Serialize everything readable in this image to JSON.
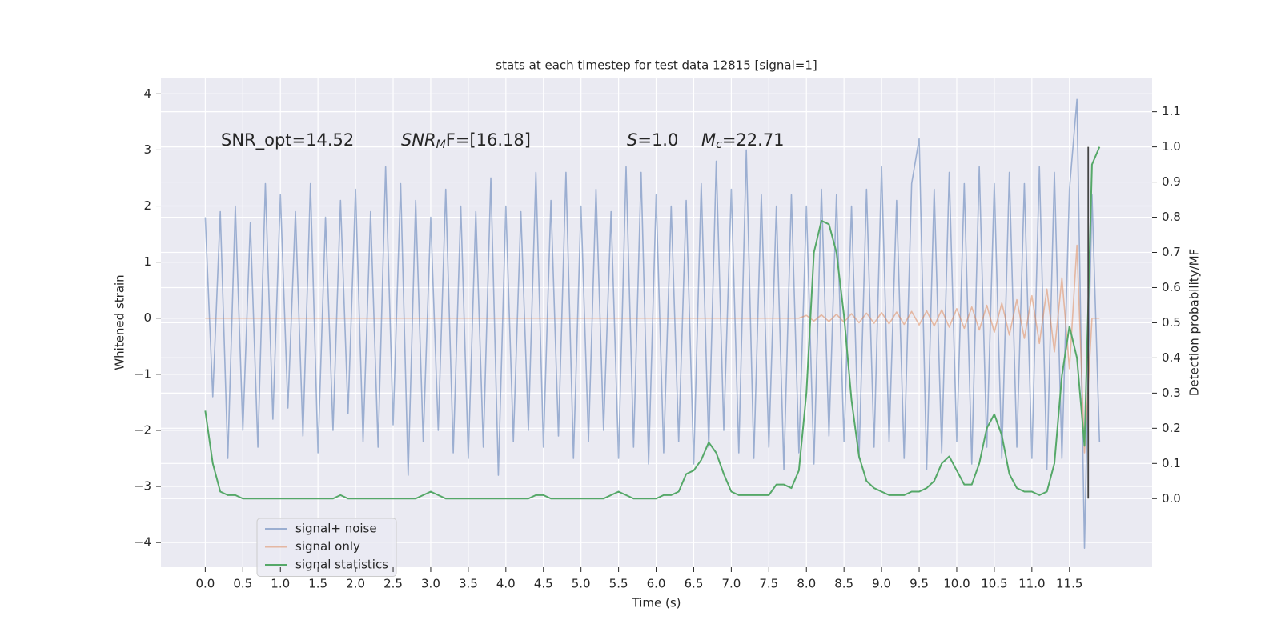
{
  "chart_data": {
    "type": "line",
    "title": "stats at each timestep for test data 12815 [signal=1]",
    "xlabel": "Time (s)",
    "ylabel": "Whitened strain",
    "y2label": "Detection probability/MF",
    "annotations": [
      [
        {
          "text": "SNR_opt=14.52"
        }
      ],
      [
        {
          "text": "SNR",
          "style": "italic"
        },
        {
          "text": "M",
          "style": "subscript"
        },
        {
          "text": "F=[16.18]"
        }
      ],
      [
        {
          "text": "S",
          "style": "italic"
        },
        {
          "text": "=1.0"
        }
      ],
      [
        {
          "text": "M",
          "style": "italic"
        },
        {
          "text": "c",
          "style": "subscript"
        },
        {
          "text": "=22.71"
        }
      ]
    ],
    "x": [
      0,
      0.1,
      0.2,
      0.3,
      0.4,
      0.5,
      0.6,
      0.7,
      0.8,
      0.9,
      1,
      1.1,
      1.2,
      1.3,
      1.4,
      1.5,
      1.6,
      1.7,
      1.8,
      1.9,
      2,
      2.1,
      2.2,
      2.3,
      2.4,
      2.5,
      2.6,
      2.7,
      2.8,
      2.9,
      3,
      3.1,
      3.2,
      3.3,
      3.4,
      3.5,
      3.6,
      3.7,
      3.8,
      3.9,
      4,
      4.1,
      4.2,
      4.3,
      4.4,
      4.5,
      4.6,
      4.7,
      4.8,
      4.9,
      5,
      5.1,
      5.2,
      5.3,
      5.4,
      5.5,
      5.6,
      5.7,
      5.8,
      5.9,
      6,
      6.1,
      6.2,
      6.3,
      6.4,
      6.5,
      6.6,
      6.7,
      6.8,
      6.9,
      7,
      7.1,
      7.2,
      7.3,
      7.4,
      7.5,
      7.6,
      7.7,
      7.8,
      7.9,
      8,
      8.1,
      8.2,
      8.3,
      8.4,
      8.5,
      8.6,
      8.7,
      8.8,
      8.9,
      9,
      9.1,
      9.2,
      9.3,
      9.4,
      9.5,
      9.6,
      9.7,
      9.8,
      9.9,
      10,
      10.1,
      10.2,
      10.3,
      10.4,
      10.5,
      10.6,
      10.7,
      10.8,
      10.9,
      11,
      11.1,
      11.2,
      11.3,
      11.4,
      11.5,
      11.6,
      11.7,
      11.8,
      11.9
    ],
    "series": [
      {
        "name": "signal+ noise",
        "color": "#4c72b0",
        "alpha": 0.5,
        "axis": "y",
        "values": [
          1.8,
          -1.4,
          1.9,
          -2.5,
          2.0,
          -2.0,
          1.7,
          -2.3,
          2.4,
          -1.8,
          2.2,
          -1.6,
          1.9,
          -2.1,
          2.4,
          -2.4,
          1.8,
          -2.0,
          2.1,
          -1.7,
          2.3,
          -2.2,
          1.9,
          -2.3,
          2.7,
          -1.9,
          2.4,
          -2.8,
          2.1,
          -2.2,
          1.8,
          -2.0,
          2.3,
          -2.4,
          2.0,
          -2.5,
          1.9,
          -2.3,
          2.5,
          -2.8,
          2.0,
          -2.2,
          1.9,
          -2.0,
          2.6,
          -2.3,
          2.1,
          -2.1,
          2.6,
          -2.5,
          2.0,
          -2.2,
          2.3,
          -2.0,
          1.9,
          -2.5,
          2.7,
          -2.3,
          2.6,
          -2.6,
          2.2,
          -2.4,
          2.0,
          -2.2,
          2.1,
          -2.6,
          2.4,
          -2.3,
          2.8,
          -2.0,
          2.3,
          -2.4,
          3.0,
          -2.5,
          2.2,
          -2.3,
          2.0,
          -2.7,
          2.2,
          -2.4,
          2.0,
          -2.6,
          2.3,
          -2.1,
          2.2,
          -2.2,
          2.0,
          -2.5,
          2.3,
          -2.3,
          2.7,
          -2.2,
          2.1,
          -2.5,
          2.4,
          3.2,
          -2.7,
          2.3,
          -2.4,
          2.6,
          -2.2,
          2.4,
          -2.6,
          2.7,
          -2.3,
          2.4,
          -2.5,
          2.6,
          -2.3,
          2.4,
          -2.5,
          2.7,
          -2.7,
          2.6,
          -2.5,
          2.3,
          3.9,
          -4.1,
          2.2,
          -2.2
        ]
      },
      {
        "name": "signal only",
        "color": "#dd8452",
        "alpha": 0.5,
        "axis": "y",
        "values": [
          0,
          0,
          0,
          0,
          0,
          0,
          0,
          0,
          0,
          0,
          0,
          0,
          0,
          0,
          0,
          0,
          0,
          0,
          0,
          0,
          0,
          0,
          0,
          0,
          0,
          0,
          0,
          0,
          0,
          0,
          0,
          0,
          0,
          0,
          0,
          0,
          0,
          0,
          0,
          0,
          0,
          0,
          0,
          0,
          0,
          0,
          0,
          0,
          0,
          0,
          0,
          0,
          0,
          0,
          0,
          0,
          0,
          0,
          0,
          0,
          0,
          0,
          0,
          0,
          0,
          0,
          0,
          0,
          0,
          0,
          0,
          0,
          0,
          0,
          0,
          0,
          0,
          0,
          0,
          0,
          0.05,
          -0.05,
          0.06,
          -0.06,
          0.07,
          -0.07,
          0.08,
          -0.08,
          0.09,
          -0.09,
          0.1,
          -0.1,
          0.11,
          -0.11,
          0.12,
          -0.12,
          0.13,
          -0.14,
          0.15,
          -0.16,
          0.17,
          -0.18,
          0.2,
          -0.21,
          0.23,
          -0.25,
          0.27,
          -0.3,
          0.33,
          -0.36,
          0.4,
          -0.45,
          0.52,
          -0.6,
          0.72,
          -0.9,
          1.3,
          -2.4,
          0,
          0
        ]
      },
      {
        "name": "signal statistics",
        "color": "#55a868",
        "alpha": 1,
        "axis": "y2",
        "values": [
          0.25,
          0.1,
          0.02,
          0.01,
          0.01,
          0,
          0,
          0,
          0,
          0,
          0,
          0,
          0,
          0,
          0,
          0,
          0,
          0,
          0.01,
          0,
          0,
          0,
          0,
          0,
          0,
          0,
          0,
          0,
          0,
          0.01,
          0.02,
          0.01,
          0,
          0,
          0,
          0,
          0,
          0,
          0,
          0,
          0,
          0,
          0,
          0,
          0.01,
          0.01,
          0,
          0,
          0,
          0,
          0,
          0,
          0,
          0,
          0.01,
          0.02,
          0.01,
          0,
          0,
          0,
          0,
          0.01,
          0.01,
          0.02,
          0.07,
          0.08,
          0.11,
          0.16,
          0.13,
          0.07,
          0.02,
          0.01,
          0.01,
          0.01,
          0.01,
          0.01,
          0.04,
          0.04,
          0.03,
          0.08,
          0.3,
          0.7,
          0.79,
          0.78,
          0.7,
          0.52,
          0.28,
          0.12,
          0.05,
          0.03,
          0.02,
          0.01,
          0.01,
          0.01,
          0.02,
          0.02,
          0.03,
          0.05,
          0.1,
          0.12,
          0.08,
          0.04,
          0.04,
          0.1,
          0.2,
          0.24,
          0.18,
          0.07,
          0.03,
          0.02,
          0.02,
          0.01,
          0.02,
          0.1,
          0.35,
          0.49,
          0.4,
          0.15,
          0.95,
          1.0
        ]
      }
    ],
    "vline": {
      "x": 11.75,
      "y2": [
        0,
        1.0
      ],
      "color": "#444444"
    },
    "xlim": [
      -0.59,
      12.6
    ],
    "ylim": [
      -4.44,
      4.29
    ],
    "y2lim": [
      -0.195,
      1.197
    ],
    "xticks": [
      {
        "value": 0,
        "label": "0.0"
      },
      0.5,
      {
        "value": 1,
        "label": "1.0"
      },
      1.5,
      {
        "value": 2,
        "label": "2.0"
      },
      2.5,
      {
        "value": 3,
        "label": "3.0"
      },
      3.5,
      {
        "value": 4,
        "label": "4.0"
      },
      4.5,
      {
        "value": 5,
        "label": "5.0"
      },
      5.5,
      {
        "value": 6,
        "label": "6.0"
      },
      6.5,
      {
        "value": 7,
        "label": "7.0"
      },
      7.5,
      {
        "value": 8,
        "label": "8.0"
      },
      8.5,
      {
        "value": 9,
        "label": "9.0"
      },
      9.5,
      {
        "value": 10,
        "label": "10.0"
      },
      10.5,
      {
        "value": 11,
        "label": "11.0"
      },
      11.5
    ],
    "yticks": [
      {
        "value": -4,
        "label": "−4"
      },
      {
        "value": -3,
        "label": "−3"
      },
      {
        "value": -2,
        "label": "−2"
      },
      {
        "value": -1,
        "label": "−1"
      },
      0,
      1,
      2,
      3,
      4
    ],
    "y2ticks": [
      {
        "value": 0,
        "label": "0.0"
      },
      0.1,
      0.2,
      0.3,
      0.4,
      0.5,
      0.6,
      0.7,
      0.8,
      0.9,
      {
        "value": 1,
        "label": "1.0"
      },
      1.1
    ],
    "grid": true,
    "legend": "lower left"
  }
}
